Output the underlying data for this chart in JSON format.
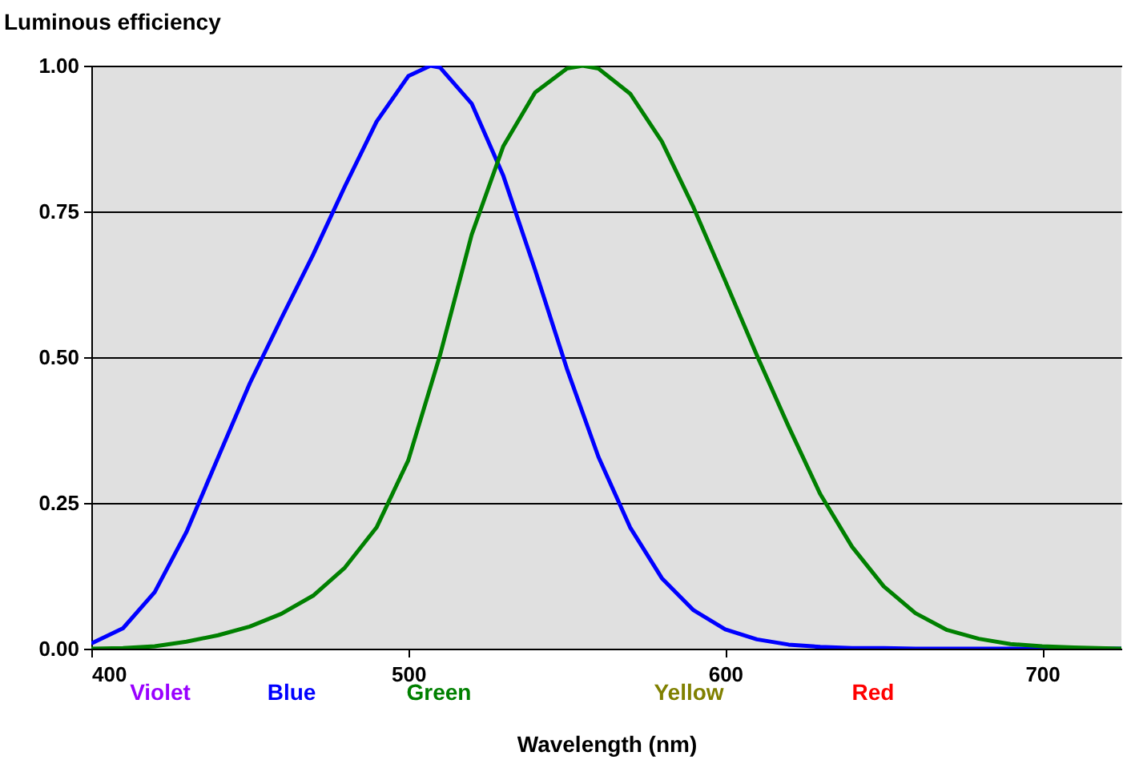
{
  "chart_data": {
    "type": "line",
    "xlabel": "Wavelength (nm)",
    "ylabel": "Luminous efficiency",
    "xlim": [
      400,
      725
    ],
    "xticks": [
      400,
      500,
      600,
      700
    ],
    "ylim": [
      0,
      1
    ],
    "yticks": [
      {
        "value": 0,
        "label": "0.00"
      },
      {
        "value": 0.25,
        "label": "0.25"
      },
      {
        "value": 0.5,
        "label": "0.50"
      },
      {
        "value": 0.75,
        "label": "0.75"
      },
      {
        "value": 1,
        "label": "1.00"
      }
    ],
    "grid": "y",
    "legend": false,
    "marker": "none",
    "line_style": "solid",
    "annotations": [
      "Violet",
      "Blue",
      "Green",
      "Yellow",
      "Red"
    ],
    "series": [
      {
        "color": "#0000ff",
        "x": [
          400,
          410,
          420,
          430,
          440,
          450,
          460,
          470,
          480,
          490,
          500,
          507,
          510,
          520,
          530,
          540,
          550,
          560,
          570,
          580,
          590,
          600,
          610,
          620,
          630,
          640,
          650,
          660,
          670,
          680,
          700,
          725
        ],
        "values": [
          0.009,
          0.035,
          0.097,
          0.2,
          0.328,
          0.455,
          0.567,
          0.676,
          0.793,
          0.904,
          0.982,
          1.0,
          0.997,
          0.935,
          0.811,
          0.65,
          0.481,
          0.329,
          0.208,
          0.121,
          0.066,
          0.033,
          0.016,
          0.007,
          0.003,
          0.001,
          0.001,
          0.0,
          0.0,
          0.0,
          0.0,
          0.0
        ]
      },
      {
        "color": "#008000",
        "x": [
          400,
          410,
          420,
          430,
          440,
          450,
          460,
          470,
          480,
          490,
          500,
          510,
          520,
          530,
          540,
          550,
          555,
          560,
          570,
          580,
          590,
          600,
          610,
          620,
          630,
          640,
          650,
          660,
          670,
          680,
          690,
          700,
          710,
          725
        ],
        "values": [
          0.0,
          0.001,
          0.004,
          0.012,
          0.023,
          0.038,
          0.06,
          0.091,
          0.139,
          0.208,
          0.323,
          0.503,
          0.71,
          0.862,
          0.954,
          0.995,
          1.0,
          0.995,
          0.952,
          0.87,
          0.757,
          0.631,
          0.503,
          0.381,
          0.265,
          0.175,
          0.107,
          0.061,
          0.032,
          0.017,
          0.008,
          0.004,
          0.002,
          0.0
        ]
      }
    ]
  }
}
